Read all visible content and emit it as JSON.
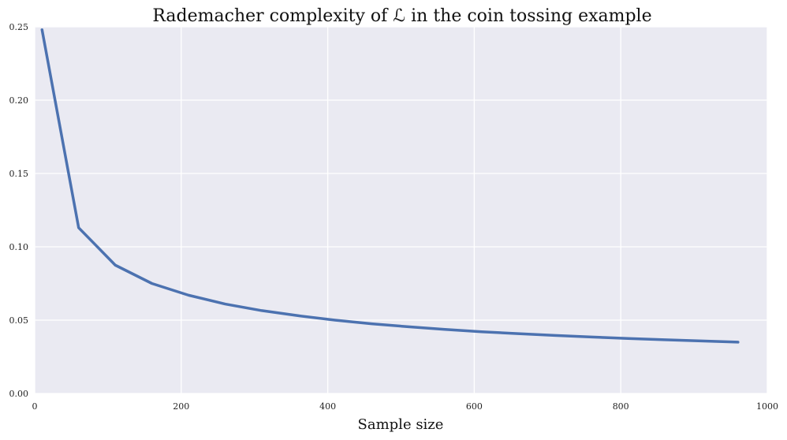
{
  "chart_data": {
    "type": "line",
    "title": "Rademacher complexity of ℒ in the coin tossing example",
    "xlabel": "Sample size",
    "ylabel": "",
    "xlim": [
      0,
      1000
    ],
    "ylim": [
      0,
      0.25
    ],
    "x_ticks": [
      0,
      200,
      400,
      600,
      800,
      1000
    ],
    "y_ticks": [
      0.0,
      0.05,
      0.1,
      0.15,
      0.2,
      0.25
    ],
    "x_tick_labels": [
      "0",
      "200",
      "400",
      "600",
      "800",
      "1000"
    ],
    "y_tick_labels": [
      "0.00",
      "0.05",
      "0.10",
      "0.15",
      "0.20",
      "0.25"
    ],
    "grid": true,
    "legend": "none",
    "colors": {
      "background": "#eaeaf2",
      "grid": "#ffffff",
      "line": "#4c72b0"
    },
    "series": [
      {
        "x": [
          10,
          60,
          110,
          160,
          210,
          260,
          310,
          360,
          410,
          460,
          510,
          560,
          610,
          660,
          710,
          760,
          810,
          860,
          910,
          960
        ],
        "values": [
          0.248,
          0.113,
          0.0875,
          0.075,
          0.067,
          0.061,
          0.0565,
          0.053,
          0.05,
          0.0475,
          0.0455,
          0.0437,
          0.0421,
          0.0408,
          0.0396,
          0.0385,
          0.0375,
          0.0366,
          0.0358,
          0.035
        ]
      }
    ]
  }
}
